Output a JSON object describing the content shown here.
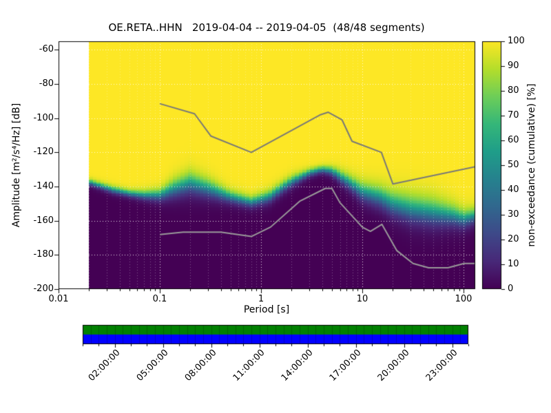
{
  "title": "OE.RETA..HHN   2019-04-04 -- 2019-04-05  (48/48 segments)",
  "axes": {
    "xlabel": "Period [s]",
    "ylabel": "Amplitude [m²/s⁴/Hz] [dB]",
    "x_ticks": [
      "0.01",
      "0.1",
      "1",
      "10",
      "100"
    ],
    "y_ticks": [
      "-60",
      "-80",
      "-100",
      "-120",
      "-140",
      "-160",
      "-180",
      "-200"
    ]
  },
  "colorbar": {
    "label": "non-exceedance (cumulative) [%]",
    "ticks": [
      "100",
      "90",
      "80",
      "70",
      "60",
      "50",
      "40",
      "30",
      "20",
      "10",
      "0"
    ]
  },
  "timeline": {
    "labels": [
      "02:00:00",
      "05:00:00",
      "08:00:00",
      "11:00:00",
      "14:00:00",
      "17:00:00",
      "20:00:00",
      "23:00:00"
    ],
    "label_hours": [
      2,
      5,
      8,
      11,
      14,
      17,
      20,
      23
    ],
    "hours_total": 24,
    "segments": 48,
    "colors": {
      "top": "#008000",
      "bottom": "#0000ff"
    }
  },
  "chart_data": {
    "type": "heatmap",
    "title": "OE.RETA..HHN 2019-04-04 -- 2019-04-05 (48/48 segments)",
    "xlabel": "Period [s]",
    "ylabel": "Amplitude [m²/s⁴/Hz] [dB]",
    "value_label": "non-exceedance (cumulative) [%]",
    "xscale": "log",
    "xlim": [
      0.01,
      130
    ],
    "ylim": [
      -200,
      -55
    ],
    "data_period_min": 0.02,
    "value_range": [
      0,
      100
    ],
    "colormap_viridis": [
      "#440154",
      "#482878",
      "#3e4989",
      "#31688e",
      "#26828e",
      "#1f9e89",
      "#35b779",
      "#6ece58",
      "#b5de2b",
      "#fde725"
    ],
    "psd_distribution": {
      "comment": "cumulative non-exceedance transitions from 0% (dark) below median_db to 100% (yellow) above; spread_db is logistic scale of the transition per period",
      "periods_s": [
        0.02,
        0.035,
        0.05,
        0.07,
        0.1,
        0.14,
        0.2,
        0.3,
        0.5,
        0.8,
        1.2,
        2,
        3,
        4,
        5,
        6,
        8,
        10,
        15,
        20,
        30,
        50,
        80,
        100,
        130
      ],
      "median_db": [
        -137.5,
        -142,
        -144,
        -145,
        -145,
        -141,
        -138,
        -141,
        -146,
        -149,
        -146,
        -137,
        -132,
        -130,
        -131,
        -134,
        -139,
        -143,
        -146,
        -150,
        -153,
        -155,
        -157,
        -159,
        -157
      ],
      "spread_db": [
        1.0,
        1.2,
        1.2,
        1.5,
        2.0,
        3.0,
        3.5,
        3.0,
        2.0,
        1.8,
        2.0,
        1.8,
        1.3,
        1.2,
        1.5,
        2.0,
        2.5,
        3.0,
        3.5,
        4.0,
        4.5,
        4.5,
        3.5,
        3.0,
        2.5
      ]
    },
    "noise_models": {
      "high_noise_model": {
        "periods_s": [
          0.1,
          0.22,
          0.32,
          0.8,
          3.8,
          4.6,
          6.3,
          7.9,
          15.4,
          20,
          130
        ],
        "db": [
          -91.5,
          -97.4,
          -110.5,
          -120.0,
          -98.1,
          -96.5,
          -101.0,
          -113.5,
          -120.0,
          -138.5,
          -128.4
        ]
      },
      "low_noise_model": {
        "periods_s": [
          0.1,
          0.17,
          0.4,
          0.8,
          1.24,
          2.4,
          4.3,
          5,
          6,
          10,
          12,
          15.6,
          21.9,
          31.6,
          45,
          70,
          101,
          130
        ],
        "db": [
          -168.1,
          -166.7,
          -166.7,
          -169.2,
          -163.7,
          -148.6,
          -141.1,
          -141.1,
          -149.4,
          -163.8,
          -166.2,
          -162.1,
          -177.5,
          -185.0,
          -187.5,
          -187.5,
          -185.0,
          -185.0
        ]
      }
    }
  }
}
